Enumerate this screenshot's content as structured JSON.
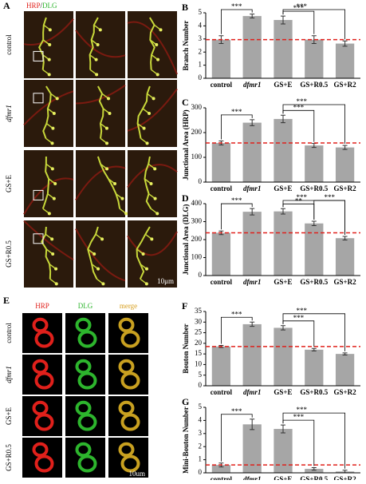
{
  "figure": {
    "panel_a": {
      "letter": "A",
      "channel_1": "HRP",
      "separator": "/",
      "channel_2": "DLG",
      "rows": [
        "control",
        "dfmr1",
        "GS+E",
        "GS+R0.5"
      ],
      "scale": "10μm"
    },
    "panel_e": {
      "letter": "E",
      "columns": [
        "HRP",
        "DLG",
        "merge"
      ],
      "rows": [
        "control",
        "dfmr1",
        "GS+E",
        "GS+R0.5"
      ],
      "scale": "10um"
    }
  },
  "chart_data": [
    {
      "type": "bar",
      "panel": "B",
      "ylabel": "Branch Number",
      "categories": [
        "control",
        "dfmr1",
        "GS+E",
        "GS+R0.5",
        "GS+R2"
      ],
      "italic_index": 1,
      "values": [
        2.95,
        4.75,
        4.45,
        2.95,
        2.65
      ],
      "errors": [
        0.3,
        0.15,
        0.3,
        0.3,
        0.2
      ],
      "color": "#a6a6a6",
      "reference_line": 2.95,
      "reference_color": "#e0201b",
      "ylim": [
        0,
        5
      ],
      "yticks": [
        0,
        1,
        2,
        3,
        4,
        5
      ],
      "annotations": [
        {
          "label": "***",
          "from": 0,
          "to": 1
        },
        {
          "label": "***",
          "from": 2,
          "to": 3
        },
        {
          "label": "***",
          "from": 2,
          "to": 4
        }
      ]
    },
    {
      "type": "bar",
      "panel": "C",
      "ylabel": "Junctional Area (HRP)",
      "categories": [
        "control",
        "dfmr1",
        "GS+E",
        "GS+R0.5",
        "GS+R2"
      ],
      "italic_index": 1,
      "values": [
        158,
        240,
        255,
        148,
        140
      ],
      "errors": [
        8,
        12,
        15,
        8,
        8
      ],
      "color": "#a6a6a6",
      "reference_line": 158,
      "reference_color": "#e0201b",
      "ylim": [
        0,
        300
      ],
      "yticks": [
        0,
        100,
        200,
        300
      ],
      "annotations": [
        {
          "label": "***",
          "from": 0,
          "to": 1
        },
        {
          "label": "***",
          "from": 2,
          "to": 3
        },
        {
          "label": "***",
          "from": 2,
          "to": 4
        }
      ]
    },
    {
      "type": "bar",
      "panel": "D",
      "ylabel": "Junctional Area (DLG)",
      "categories": [
        "control",
        "dfmr1",
        "GS+E",
        "GS+R0.5",
        "GS+R2"
      ],
      "italic_index": 1,
      "values": [
        238,
        355,
        357,
        290,
        208
      ],
      "errors": [
        10,
        18,
        15,
        12,
        10
      ],
      "color": "#a6a6a6",
      "reference_line": 238,
      "reference_color": "#e0201b",
      "ylim": [
        0,
        400
      ],
      "yticks": [
        0,
        100,
        200,
        300,
        400
      ],
      "annotations": [
        {
          "label": "***",
          "from": 0,
          "to": 1
        },
        {
          "label": "**",
          "from": 2,
          "to": 3
        },
        {
          "label": "***",
          "from": 3,
          "to": 4
        },
        {
          "label": "***",
          "from": 2,
          "to": 4
        }
      ]
    },
    {
      "type": "bar",
      "panel": "F",
      "ylabel": "Bouton Number",
      "categories": [
        "control",
        "dfmr1",
        "GS+E",
        "GS+R0.5",
        "GS+R2"
      ],
      "italic_index": 1,
      "values": [
        18.5,
        29,
        27.3,
        17,
        15
      ],
      "errors": [
        0.5,
        1,
        1,
        0.6,
        0.5
      ],
      "color": "#a6a6a6",
      "reference_line": 18.5,
      "reference_color": "#e0201b",
      "ylim": [
        0,
        35
      ],
      "yticks": [
        0,
        5,
        10,
        15,
        20,
        25,
        30,
        35
      ],
      "annotations": [
        {
          "label": "***",
          "from": 0,
          "to": 1
        },
        {
          "label": "***",
          "from": 2,
          "to": 3
        },
        {
          "label": "***",
          "from": 2,
          "to": 4
        }
      ]
    },
    {
      "type": "bar",
      "panel": "G",
      "ylabel": "Mini-Bouton Number",
      "categories": [
        "control",
        "dfmr1",
        "GS+E",
        "GS+R0.5",
        "GS+R2"
      ],
      "italic_index": 1,
      "values": [
        0.6,
        3.7,
        3.35,
        0.3,
        0.1
      ],
      "errors": [
        0.15,
        0.4,
        0.3,
        0.1,
        0.1
      ],
      "color": "#a6a6a6",
      "reference_line": 0.6,
      "reference_color": "#e0201b",
      "ylim": [
        0,
        5
      ],
      "yticks": [
        0,
        1,
        2,
        3,
        4,
        5
      ],
      "annotations": [
        {
          "label": "***",
          "from": 0,
          "to": 1
        },
        {
          "label": "***",
          "from": 2,
          "to": 3
        },
        {
          "label": "***",
          "from": 2,
          "to": 4
        }
      ]
    }
  ]
}
